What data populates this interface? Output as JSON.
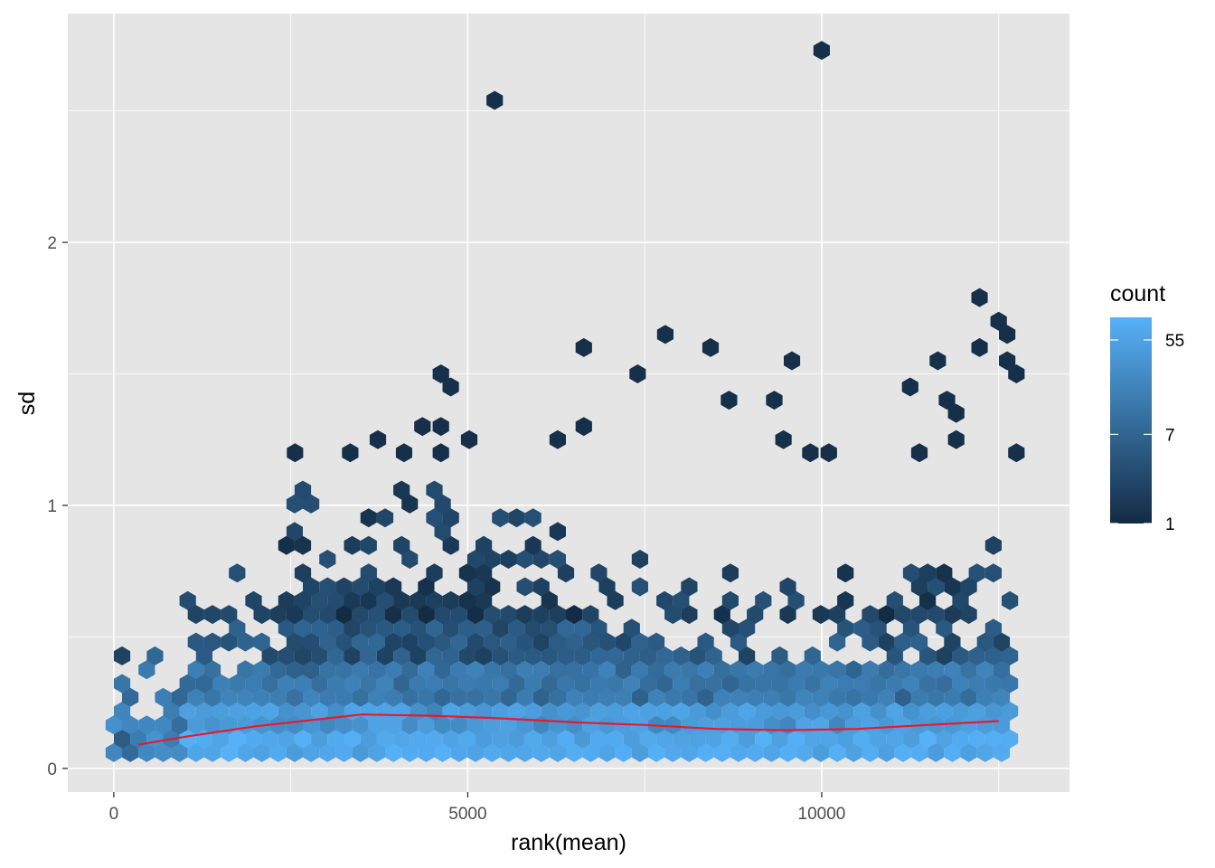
{
  "chart_data": {
    "type": "hexbin",
    "title": "",
    "xlabel": "rank(mean)",
    "ylabel": "sd",
    "xlim": [
      -650,
      13500
    ],
    "ylim": [
      -0.09,
      2.87
    ],
    "x_ticks": [
      0,
      5000,
      10000
    ],
    "x_tick_labels": [
      "0",
      "5000",
      "10000"
    ],
    "y_ticks": [
      0,
      1,
      2
    ],
    "y_tick_labels": [
      "0",
      "1",
      "2"
    ],
    "grid": true,
    "panel_background": "#e5e5e5",
    "legend": {
      "title": "count",
      "position": "right",
      "scale": "log",
      "breaks": [
        1,
        7,
        55
      ],
      "break_labels": [
        "1",
        "7",
        "55"
      ],
      "max_count": 90,
      "low_color": "#132b43",
      "high_color": "#56b1f7"
    },
    "trend_line": {
      "color": "#e8192c",
      "x": [
        350,
        1000,
        2000,
        3000,
        3500,
        4500,
        5500,
        6500,
        7500,
        8500,
        9500,
        10500,
        11500,
        12500
      ],
      "y": [
        0.09,
        0.12,
        0.16,
        0.19,
        0.205,
        0.2,
        0.19,
        0.175,
        0.165,
        0.15,
        0.145,
        0.15,
        0.165,
        0.18
      ]
    },
    "outliers": [
      {
        "x": 10000,
        "y": 2.73
      },
      {
        "x": 5380,
        "y": 2.54
      },
      {
        "x": 12230,
        "y": 1.79
      },
      {
        "x": 12500,
        "y": 1.7
      },
      {
        "x": 12620,
        "y": 1.65
      },
      {
        "x": 12230,
        "y": 1.6
      },
      {
        "x": 6640,
        "y": 1.6
      },
      {
        "x": 7790,
        "y": 1.65
      },
      {
        "x": 8430,
        "y": 1.6
      },
      {
        "x": 9580,
        "y": 1.55
      },
      {
        "x": 11640,
        "y": 1.55
      },
      {
        "x": 12620,
        "y": 1.55
      },
      {
        "x": 12750,
        "y": 1.5
      },
      {
        "x": 4620,
        "y": 1.5
      },
      {
        "x": 7400,
        "y": 1.5
      },
      {
        "x": 4760,
        "y": 1.45
      },
      {
        "x": 11250,
        "y": 1.45
      },
      {
        "x": 8690,
        "y": 1.4
      },
      {
        "x": 9330,
        "y": 1.4
      },
      {
        "x": 11770,
        "y": 1.4
      },
      {
        "x": 11900,
        "y": 1.35
      },
      {
        "x": 4360,
        "y": 1.3
      },
      {
        "x": 4620,
        "y": 1.3
      },
      {
        "x": 6640,
        "y": 1.3
      },
      {
        "x": 3730,
        "y": 1.25
      },
      {
        "x": 5020,
        "y": 1.25
      },
      {
        "x": 6270,
        "y": 1.25
      },
      {
        "x": 9460,
        "y": 1.25
      },
      {
        "x": 11900,
        "y": 1.25
      },
      {
        "x": 2560,
        "y": 1.2
      },
      {
        "x": 3340,
        "y": 1.2
      },
      {
        "x": 4100,
        "y": 1.2
      },
      {
        "x": 4620,
        "y": 1.2
      },
      {
        "x": 9840,
        "y": 1.2
      },
      {
        "x": 10100,
        "y": 1.2
      },
      {
        "x": 11380,
        "y": 1.2
      },
      {
        "x": 12750,
        "y": 1.2
      }
    ],
    "note": "Hexagon bins cover the dense region x in [0, 12750], sd roughly 0 to 1.1; bin counts are highest near sd 0.05-0.3 and fall off with sd."
  }
}
